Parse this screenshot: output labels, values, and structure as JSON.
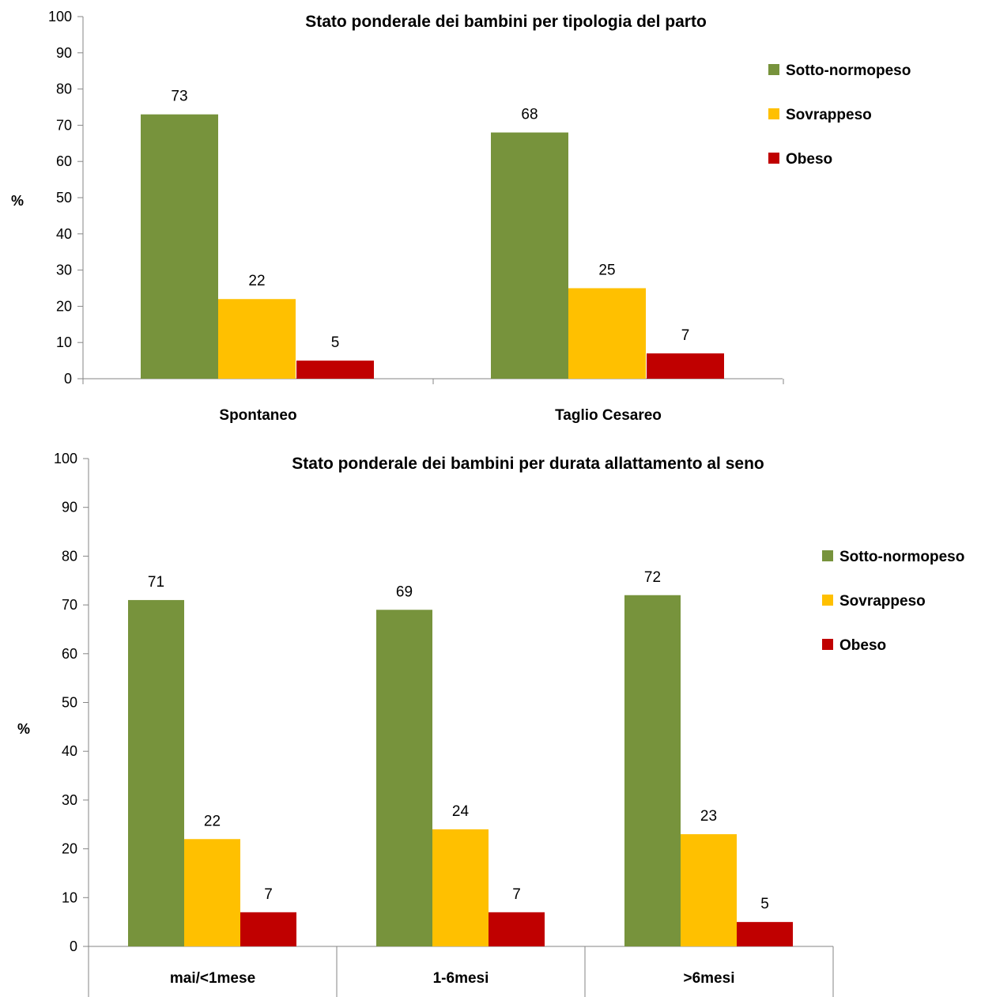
{
  "chart_data": [
    {
      "type": "bar",
      "title": "Stato ponderale dei bambini  per tipologia del  parto",
      "ylabel": "%",
      "xlabel": "",
      "ylim": [
        0,
        100
      ],
      "yticks": [
        0,
        10,
        20,
        30,
        40,
        50,
        60,
        70,
        80,
        90,
        100
      ],
      "categories": [
        "Spontaneo",
        "Taglio Cesareo"
      ],
      "series": [
        {
          "name": "Sotto-normopeso",
          "color": "#77933c",
          "values": [
            73,
            68
          ]
        },
        {
          "name": "Sovrappeso",
          "color": "#ffc000",
          "values": [
            22,
            25
          ]
        },
        {
          "name": "Obeso",
          "color": "#c00000",
          "values": [
            5,
            7
          ]
        }
      ],
      "legend": "right",
      "grid": false
    },
    {
      "type": "bar",
      "title": "Stato ponderale dei bambini  per durata allattamento al seno",
      "ylabel": "%",
      "xlabel": "",
      "ylim": [
        0,
        100
      ],
      "yticks": [
        0,
        10,
        20,
        30,
        40,
        50,
        60,
        70,
        80,
        90,
        100
      ],
      "categories": [
        "mai/<1mese",
        "1-6mesi",
        ">6mesi"
      ],
      "series": [
        {
          "name": "Sotto-normopeso",
          "color": "#77933c",
          "values": [
            71,
            69,
            72
          ]
        },
        {
          "name": "Sovrappeso",
          "color": "#ffc000",
          "values": [
            22,
            24,
            23
          ]
        },
        {
          "name": "Obeso",
          "color": "#c00000",
          "values": [
            7,
            7,
            5
          ]
        }
      ],
      "legend": "right",
      "grid": false
    }
  ]
}
